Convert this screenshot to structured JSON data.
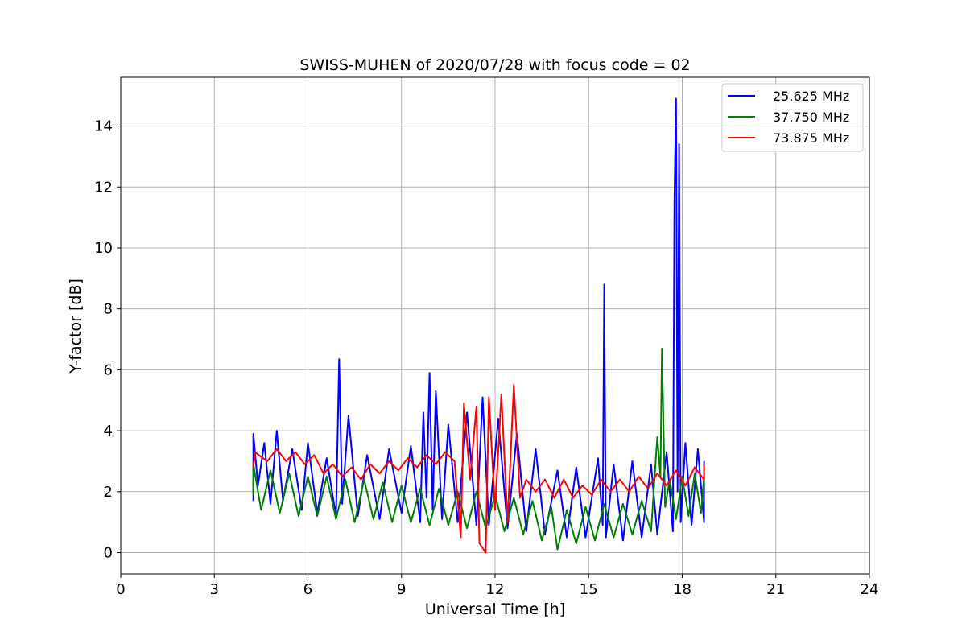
{
  "chart_data": {
    "type": "line",
    "title": "SWISS-MUHEN of 2020/07/28 with focus code = 02",
    "xlabel": "Universal Time [h]",
    "ylabel": "Y-factor [dB]",
    "xlim": [
      0,
      24
    ],
    "ylim": [
      -0.7,
      15.6
    ],
    "xticks": [
      0,
      3,
      6,
      9,
      12,
      15,
      18,
      21,
      24
    ],
    "yticks": [
      0,
      2,
      4,
      6,
      8,
      10,
      12,
      14
    ],
    "grid": true,
    "legend_position": "top-right",
    "series": [
      {
        "name": "25.625 MHz",
        "color": "#0000ff",
        "points": [
          [
            4.25,
            1.7
          ],
          [
            4.25,
            3.9
          ],
          [
            4.4,
            2.2
          ],
          [
            4.6,
            3.6
          ],
          [
            4.8,
            1.6
          ],
          [
            5.0,
            4.0
          ],
          [
            5.2,
            1.7
          ],
          [
            5.5,
            3.4
          ],
          [
            5.8,
            1.4
          ],
          [
            6.0,
            3.6
          ],
          [
            6.3,
            1.3
          ],
          [
            6.6,
            3.1
          ],
          [
            6.9,
            1.2
          ],
          [
            7.0,
            6.35
          ],
          [
            7.1,
            1.6
          ],
          [
            7.3,
            4.5
          ],
          [
            7.6,
            1.2
          ],
          [
            7.9,
            3.2
          ],
          [
            8.3,
            1.1
          ],
          [
            8.6,
            3.4
          ],
          [
            9.0,
            1.3
          ],
          [
            9.3,
            3.5
          ],
          [
            9.6,
            1.0
          ],
          [
            9.7,
            4.6
          ],
          [
            9.8,
            1.8
          ],
          [
            9.9,
            5.9
          ],
          [
            10.0,
            1.4
          ],
          [
            10.1,
            5.3
          ],
          [
            10.3,
            1.1
          ],
          [
            10.5,
            4.2
          ],
          [
            10.8,
            1.0
          ],
          [
            11.1,
            4.6
          ],
          [
            11.4,
            0.9
          ],
          [
            11.6,
            5.1
          ],
          [
            11.8,
            0.9
          ],
          [
            12.1,
            4.4
          ],
          [
            12.4,
            0.8
          ],
          [
            12.7,
            3.9
          ],
          [
            13.0,
            0.7
          ],
          [
            13.3,
            3.4
          ],
          [
            13.6,
            0.6
          ],
          [
            14.0,
            2.7
          ],
          [
            14.3,
            0.5
          ],
          [
            14.6,
            2.8
          ],
          [
            14.9,
            0.5
          ],
          [
            15.3,
            3.1
          ],
          [
            15.45,
            0.9
          ],
          [
            15.5,
            8.8
          ],
          [
            15.55,
            0.5
          ],
          [
            15.8,
            2.9
          ],
          [
            16.1,
            0.4
          ],
          [
            16.4,
            3.0
          ],
          [
            16.7,
            0.5
          ],
          [
            17.0,
            2.9
          ],
          [
            17.2,
            0.6
          ],
          [
            17.5,
            3.3
          ],
          [
            17.7,
            0.7
          ],
          [
            17.75,
            11.5
          ],
          [
            17.8,
            14.9
          ],
          [
            17.85,
            2.0
          ],
          [
            17.9,
            13.4
          ],
          [
            17.95,
            1.0
          ],
          [
            18.1,
            3.6
          ],
          [
            18.3,
            0.9
          ],
          [
            18.5,
            3.4
          ],
          [
            18.7,
            1.0
          ],
          [
            18.7,
            3.0
          ]
        ]
      },
      {
        "name": "37.750 MHz",
        "color": "#008000",
        "points": [
          [
            4.25,
            1.9
          ],
          [
            4.25,
            2.9
          ],
          [
            4.5,
            1.4
          ],
          [
            4.8,
            2.7
          ],
          [
            5.1,
            1.3
          ],
          [
            5.4,
            2.6
          ],
          [
            5.7,
            1.2
          ],
          [
            6.0,
            2.5
          ],
          [
            6.3,
            1.2
          ],
          [
            6.6,
            2.5
          ],
          [
            6.9,
            1.1
          ],
          [
            7.2,
            2.4
          ],
          [
            7.5,
            1.0
          ],
          [
            7.8,
            2.4
          ],
          [
            8.1,
            1.1
          ],
          [
            8.4,
            2.3
          ],
          [
            8.7,
            1.0
          ],
          [
            9.0,
            2.2
          ],
          [
            9.3,
            1.0
          ],
          [
            9.6,
            2.1
          ],
          [
            9.9,
            0.9
          ],
          [
            10.2,
            2.1
          ],
          [
            10.5,
            0.9
          ],
          [
            10.8,
            2.0
          ],
          [
            11.1,
            0.8
          ],
          [
            11.4,
            2.0
          ],
          [
            11.7,
            0.8
          ],
          [
            12.0,
            1.9
          ],
          [
            12.3,
            0.7
          ],
          [
            12.6,
            1.8
          ],
          [
            12.9,
            0.6
          ],
          [
            13.2,
            1.7
          ],
          [
            13.5,
            0.4
          ],
          [
            13.8,
            1.5
          ],
          [
            14.0,
            0.1
          ],
          [
            14.3,
            1.4
          ],
          [
            14.6,
            0.3
          ],
          [
            14.9,
            1.5
          ],
          [
            15.2,
            0.4
          ],
          [
            15.5,
            1.6
          ],
          [
            15.8,
            0.5
          ],
          [
            16.1,
            1.6
          ],
          [
            16.4,
            0.6
          ],
          [
            16.7,
            1.7
          ],
          [
            17.0,
            0.7
          ],
          [
            17.2,
            3.8
          ],
          [
            17.3,
            2.5
          ],
          [
            17.35,
            6.7
          ],
          [
            17.45,
            1.5
          ],
          [
            17.6,
            2.4
          ],
          [
            17.8,
            1.1
          ],
          [
            18.0,
            2.5
          ],
          [
            18.2,
            1.2
          ],
          [
            18.4,
            2.6
          ],
          [
            18.6,
            1.3
          ],
          [
            18.7,
            2.5
          ]
        ]
      },
      {
        "name": "73.875 MHz",
        "color": "#ff0000",
        "points": [
          [
            4.25,
            2.8
          ],
          [
            4.3,
            3.3
          ],
          [
            4.7,
            3.0
          ],
          [
            5.0,
            3.4
          ],
          [
            5.3,
            3.0
          ],
          [
            5.6,
            3.3
          ],
          [
            5.9,
            2.9
          ],
          [
            6.2,
            3.2
          ],
          [
            6.5,
            2.6
          ],
          [
            6.8,
            2.9
          ],
          [
            7.1,
            2.5
          ],
          [
            7.4,
            2.8
          ],
          [
            7.7,
            2.4
          ],
          [
            8.0,
            2.9
          ],
          [
            8.3,
            2.6
          ],
          [
            8.6,
            3.0
          ],
          [
            8.9,
            2.7
          ],
          [
            9.2,
            3.1
          ],
          [
            9.5,
            2.8
          ],
          [
            9.8,
            3.2
          ],
          [
            10.1,
            2.9
          ],
          [
            10.4,
            3.3
          ],
          [
            10.7,
            3.0
          ],
          [
            10.9,
            0.5
          ],
          [
            11.0,
            4.9
          ],
          [
            11.2,
            2.4
          ],
          [
            11.4,
            4.8
          ],
          [
            11.5,
            0.3
          ],
          [
            11.7,
            0.0
          ],
          [
            11.8,
            5.1
          ],
          [
            12.0,
            1.4
          ],
          [
            12.2,
            5.2
          ],
          [
            12.4,
            1.0
          ],
          [
            12.6,
            5.5
          ],
          [
            12.8,
            1.8
          ],
          [
            13.0,
            2.4
          ],
          [
            13.3,
            2.0
          ],
          [
            13.6,
            2.4
          ],
          [
            13.9,
            1.8
          ],
          [
            14.2,
            2.4
          ],
          [
            14.5,
            1.8
          ],
          [
            14.8,
            2.2
          ],
          [
            15.1,
            1.9
          ],
          [
            15.4,
            2.4
          ],
          [
            15.7,
            2.0
          ],
          [
            16.0,
            2.4
          ],
          [
            16.3,
            2.0
          ],
          [
            16.6,
            2.5
          ],
          [
            16.9,
            2.1
          ],
          [
            17.2,
            2.6
          ],
          [
            17.5,
            2.2
          ],
          [
            17.8,
            2.7
          ],
          [
            18.1,
            2.2
          ],
          [
            18.4,
            2.8
          ],
          [
            18.7,
            2.4
          ],
          [
            18.7,
            2.9
          ]
        ]
      }
    ]
  }
}
